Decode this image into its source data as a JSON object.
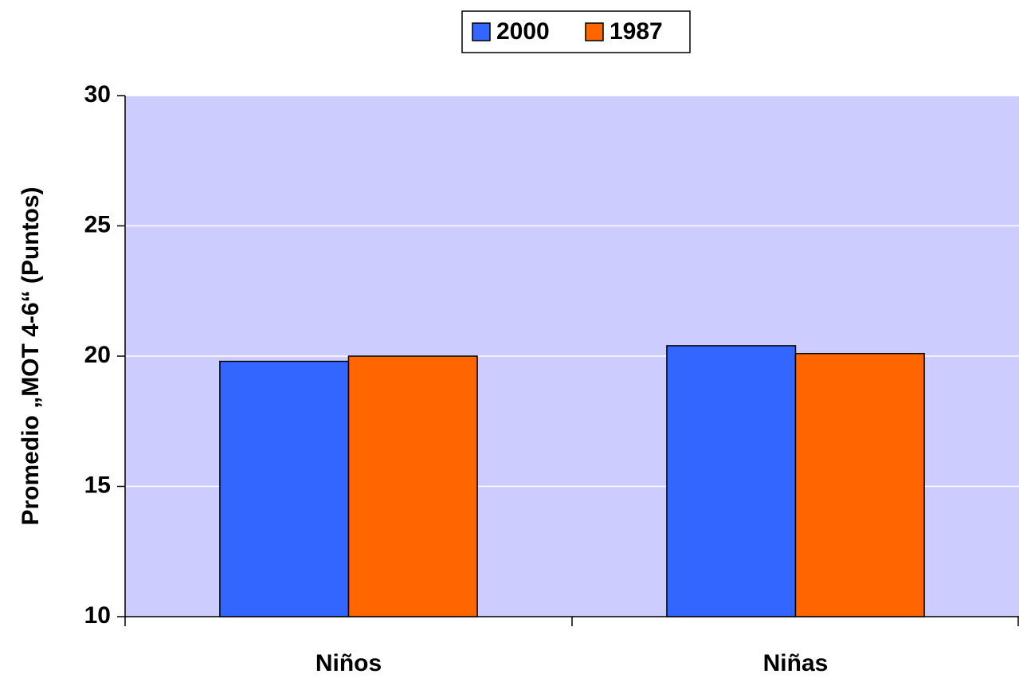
{
  "chart_data": {
    "type": "bar",
    "y_label": "Promedio „MOT 4-6“ (Puntos)",
    "categories": [
      "Niños",
      "Niñas"
    ],
    "series": [
      {
        "name": "2000",
        "color": "#3366ff",
        "values": [
          19.8,
          20.4
        ]
      },
      {
        "name": "1987",
        "color": "#ff6600",
        "values": [
          20.0,
          20.1
        ]
      }
    ],
    "ylim": [
      10,
      30
    ],
    "yticks": [
      10,
      15,
      20,
      25,
      30
    ],
    "grid": true,
    "plot_background": "#ccccff",
    "legend": "top"
  }
}
